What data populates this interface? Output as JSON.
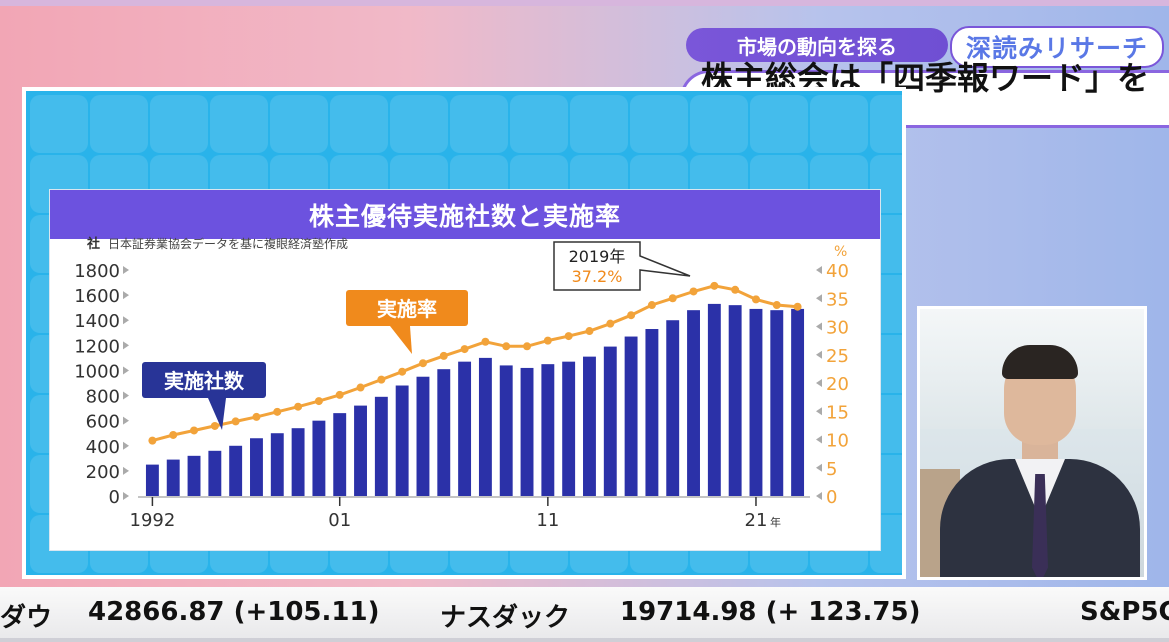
{
  "header": {
    "tag": "市場の動向を探る",
    "brand": "深読みリサーチ",
    "headline": "株主総会は「四季報ワード」を活用"
  },
  "ticker": {
    "items": [
      {
        "name": "ダウ",
        "value": "42866.87 (+105.11)"
      },
      {
        "name": "ナスダック",
        "value": "19714.98 (+ 123.75)"
      },
      {
        "name": "S&P5C",
        "value": ""
      }
    ]
  },
  "colors": {
    "bar": "#2b31a8",
    "line": "#f2a33a",
    "title_bg": "#6c52df",
    "accent_orange": "#f08a1c",
    "accent_navy": "#283497"
  },
  "chart_data": {
    "type": "bar",
    "title": "株主優待実施社数と実施率",
    "source_note": "日本証券業協会データを基に複眼経済塾作成",
    "left_unit": "社",
    "right_unit": "%",
    "y_left_ticks": [
      "1800",
      "1600",
      "1400",
      "1200",
      "1000",
      "800",
      "600",
      "400",
      "200",
      "0"
    ],
    "y_right_ticks": [
      "40",
      "35",
      "30",
      "25",
      "20",
      "15",
      "10",
      "5",
      "0"
    ],
    "ylim_left": [
      0,
      1800
    ],
    "ylim_right": [
      0,
      40
    ],
    "x_tick_labels": [
      {
        "index": 0,
        "label": "1992"
      },
      {
        "index": 9,
        "label": "01"
      },
      {
        "index": 19,
        "label": "11"
      },
      {
        "index": 29,
        "label": "21"
      }
    ],
    "x_suffix": "年",
    "years": [
      1992,
      1993,
      1994,
      1995,
      1996,
      1997,
      1998,
      1999,
      2000,
      2001,
      2002,
      2003,
      2004,
      2005,
      2006,
      2007,
      2008,
      2009,
      2010,
      2011,
      2012,
      2013,
      2014,
      2015,
      2016,
      2017,
      2018,
      2019,
      2020,
      2021,
      2022,
      2023
    ],
    "series": [
      {
        "name": "実施社数",
        "axis": "left",
        "type": "bar",
        "values": [
          250,
          290,
          320,
          360,
          400,
          460,
          500,
          540,
          600,
          660,
          720,
          790,
          880,
          950,
          1010,
          1070,
          1100,
          1040,
          1020,
          1050,
          1070,
          1110,
          1190,
          1270,
          1330,
          1400,
          1480,
          1530,
          1520,
          1490,
          1480,
          1490
        ]
      },
      {
        "name": "実施率",
        "axis": "right",
        "type": "line",
        "values": [
          9.8,
          10.8,
          11.6,
          12.4,
          13.2,
          14.0,
          14.9,
          15.8,
          16.8,
          17.9,
          19.2,
          20.6,
          22.0,
          23.5,
          24.8,
          26.0,
          27.3,
          26.5,
          26.5,
          27.5,
          28.3,
          29.2,
          30.5,
          32.0,
          33.8,
          35.0,
          36.2,
          37.2,
          36.5,
          34.8,
          33.8,
          33.5
        ]
      }
    ],
    "callouts": {
      "bars_label": "実施社数",
      "line_label": "実施率",
      "peak_year": "2019年",
      "peak_value": "37.2%"
    }
  }
}
